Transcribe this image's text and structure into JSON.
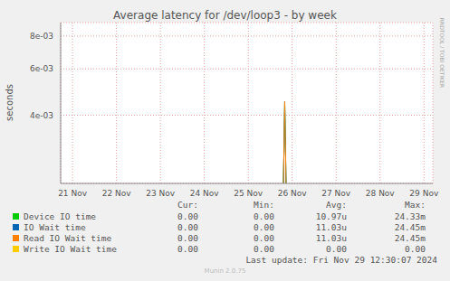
{
  "chart_data": {
    "type": "line",
    "title": "Average latency for /dev/loop3 - by week",
    "y_label": "seconds",
    "log": "y",
    "grid": true,
    "x": [
      25.8,
      25.83,
      25.86
    ],
    "xlim": [
      20.73,
      29.2
    ],
    "xticks": [
      {
        "value": 21,
        "label": "21 Nov"
      },
      {
        "value": 22,
        "label": "22 Nov"
      },
      {
        "value": 23,
        "label": "23 Nov"
      },
      {
        "value": 24,
        "label": "24 Nov"
      },
      {
        "value": 25,
        "label": "25 Nov"
      },
      {
        "value": 26,
        "label": "26 Nov"
      },
      {
        "value": 27,
        "label": "27 Nov"
      },
      {
        "value": 28,
        "label": "28 Nov"
      },
      {
        "value": 29,
        "label": "29 Nov"
      }
    ],
    "ylim": [
      0.0022,
      0.009
    ],
    "yticks": [
      {
        "value": 0.004,
        "label": "4e-03"
      },
      {
        "value": 0.006,
        "label": "6e-03"
      },
      {
        "value": 0.008,
        "label": "8e-03"
      }
    ],
    "legend_headers": [
      "Cur:",
      "Min:",
      "Avg:",
      "Max:"
    ],
    "series": [
      {
        "name": "Device IO time",
        "color": "#00cc00",
        "values": [
          0.0022,
          0.0045,
          0.0022
        ],
        "cur": "0.00",
        "min": "0.00",
        "avg": "10.97u",
        "max": "24.33m"
      },
      {
        "name": "IO Wait time",
        "color": "#0066b3",
        "values": [
          0.0022,
          0.0045,
          0.0022
        ],
        "cur": "0.00",
        "min": "0.00",
        "avg": "11.03u",
        "max": "24.45m"
      },
      {
        "name": "Read IO Wait time",
        "color": "#ff8000",
        "values": [
          0.0022,
          0.0045,
          0.0022
        ],
        "cur": "0.00",
        "min": "0.00",
        "avg": "11.03u",
        "max": "24.45m"
      },
      {
        "name": "Write IO Wait time",
        "color": "#ffcc00",
        "values": [
          null,
          null,
          null
        ],
        "cur": "0.00",
        "min": "0.00",
        "avg": "0.00",
        "max": "0.00"
      }
    ],
    "last_update": "Last update: Fri Nov 29 12:30:07 2024",
    "footer": "Munin 2.0.75",
    "watermark": "RRDTOOL / TOBI OETIKER"
  }
}
